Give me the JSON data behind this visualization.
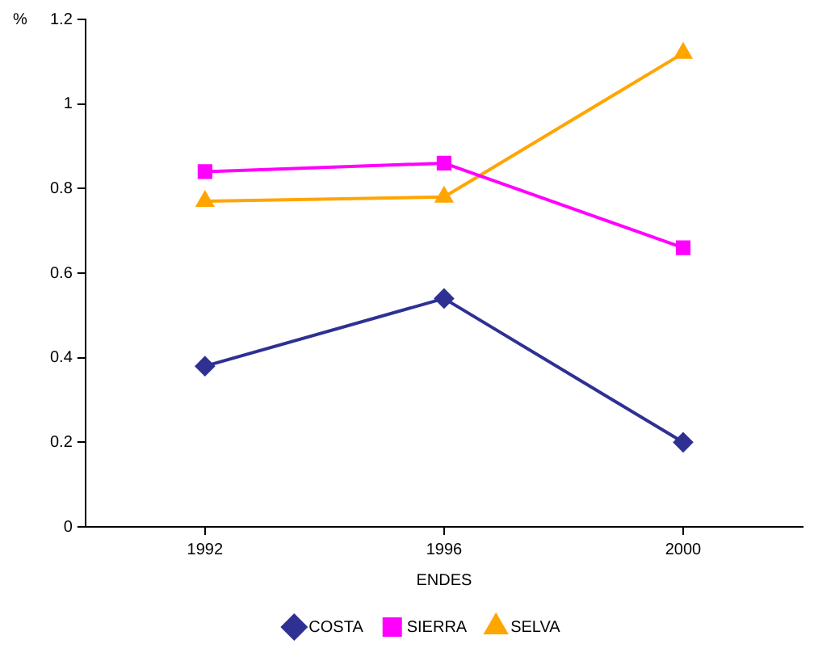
{
  "chart_data": {
    "type": "line",
    "xlabel": "ENDES",
    "ylabel": "%",
    "categories": [
      "1992",
      "1996",
      "2000"
    ],
    "series": [
      {
        "name": "COSTA",
        "color": "#2e3192",
        "marker": "diamond",
        "values": [
          0.38,
          0.54,
          0.2
        ]
      },
      {
        "name": "SIERRA",
        "color": "#ff00ff",
        "marker": "square",
        "values": [
          0.84,
          0.86,
          0.66
        ]
      },
      {
        "name": "SELVA",
        "color": "#ffa500",
        "marker": "triangle",
        "values": [
          0.77,
          0.78,
          1.12
        ]
      }
    ],
    "ylim": [
      0,
      1.2
    ],
    "yticks": [
      0,
      0.2,
      0.4,
      0.6,
      0.8,
      1,
      1.2
    ],
    "grid": false,
    "legend": "bottom",
    "line_style": "solid"
  }
}
